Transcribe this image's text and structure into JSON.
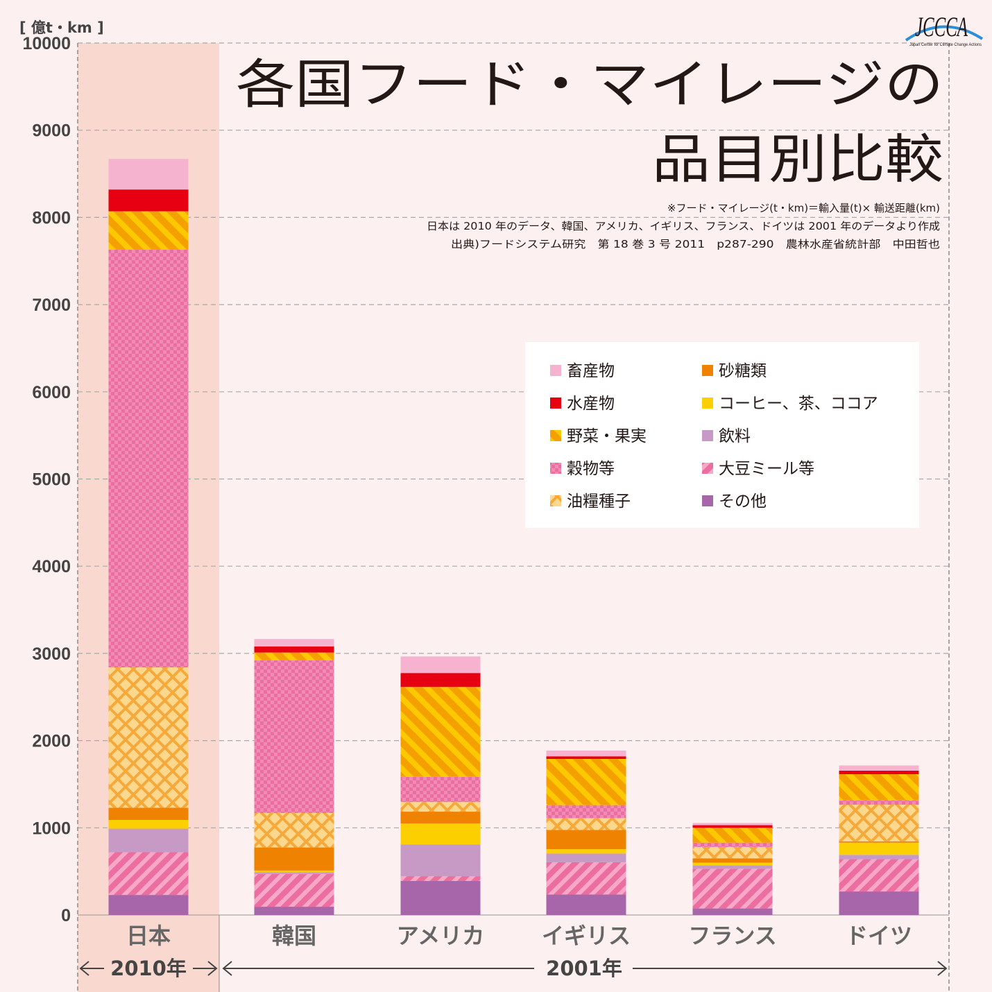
{
  "chart_data": {
    "type": "bar",
    "stacked": true,
    "title_lines": [
      "各国フード・マイレージの",
      "品目別比較"
    ],
    "notes": [
      "※フード・マイレージ(t・km)＝輸入量(t)× 輸送距離(km)",
      "日本は 2010 年のデータ、韓国、アメリカ、イギリス、フランス、ドイツは 2001 年のデータより作成",
      "出典)フードシステム研究　第 18 巻 3 号 2011　p287-290　農林水産省統計部　中田哲也"
    ],
    "ylabel": "[ 億t・km ]",
    "ylim": [
      0,
      10000
    ],
    "yticks": [
      0,
      1000,
      2000,
      3000,
      4000,
      5000,
      6000,
      7000,
      8000,
      9000,
      10000
    ],
    "grid": true,
    "legend_position": "right",
    "categories": [
      "日本",
      "韓国",
      "アメリカ",
      "イギリス",
      "フランス",
      "ドイツ"
    ],
    "periods": [
      {
        "label": "2010年",
        "categories": [
          "日本"
        ]
      },
      {
        "label": "2001年",
        "categories": [
          "韓国",
          "アメリカ",
          "イギリス",
          "フランス",
          "ドイツ"
        ]
      }
    ],
    "series": [
      {
        "name": "その他",
        "color": "#a866aa",
        "pattern": "solid",
        "values": [
          230,
          95,
          390,
          235,
          75,
          270
        ]
      },
      {
        "name": "大豆ミール等",
        "color": "#ec6ea0",
        "pattern": "diagonal",
        "values": [
          490,
          375,
          55,
          370,
          455,
          370
        ]
      },
      {
        "name": "飲料",
        "color": "#c79ac6",
        "pattern": "solid",
        "values": [
          270,
          20,
          365,
          100,
          40,
          50
        ]
      },
      {
        "name": "コーヒー、茶、ココア",
        "color": "#fcd000",
        "pattern": "solid",
        "values": [
          100,
          20,
          240,
          50,
          30,
          140
        ]
      },
      {
        "name": "砂糖類",
        "color": "#ef8200",
        "pattern": "solid",
        "values": [
          140,
          265,
          135,
          220,
          50,
          15
        ]
      },
      {
        "name": "油糧種子",
        "color": "#fbc45e",
        "pattern": "lattice",
        "values": [
          1610,
          395,
          110,
          135,
          130,
          420
        ]
      },
      {
        "name": "穀物等",
        "color": "#ec6ea0",
        "pattern": "checker",
        "values": [
          4790,
          1750,
          290,
          150,
          50,
          50
        ]
      },
      {
        "name": "野菜・果実",
        "color": "#f3a000",
        "pattern": "stripe",
        "values": [
          440,
          90,
          1030,
          530,
          170,
          300
        ]
      },
      {
        "name": "水産物",
        "color": "#e60012",
        "pattern": "solid",
        "values": [
          250,
          70,
          160,
          30,
          30,
          40
        ]
      },
      {
        "name": "畜産物",
        "color": "#f5b3cf",
        "pattern": "solid",
        "values": [
          350,
          85,
          190,
          65,
          25,
          60
        ]
      }
    ],
    "legend_order": [
      "畜産物",
      "砂糖類",
      "水産物",
      "コーヒー、茶、ココア",
      "野菜・果実",
      "飲料",
      "穀物等",
      "大豆ミール等",
      "油糧種子",
      "その他"
    ]
  },
  "logo": {
    "name": "JCCCA",
    "subtitle": "Japan Center for Climate Change Actions"
  }
}
